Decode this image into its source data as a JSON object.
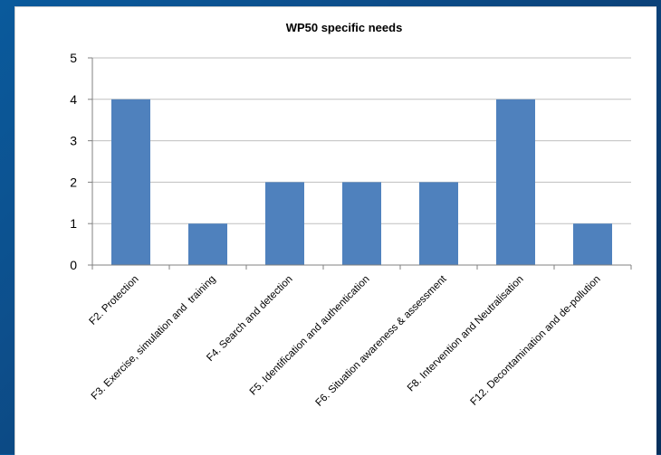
{
  "chart_data": {
    "type": "bar",
    "title": "WP50 specific needs",
    "xlabel": "",
    "ylabel": "",
    "ylim": [
      0,
      5
    ],
    "yticks": [
      0,
      1,
      2,
      3,
      4,
      5
    ],
    "grid": true,
    "legend": "none",
    "bar_color": "#4f81bd",
    "categories": [
      "F2. Protection",
      "F3. Exercise, simulation and  training",
      "F4. Search and detection",
      "F5. Identification and authentication",
      "F6. Situation awareness & assessment",
      "F8. Intervention and Neutralisation",
      "F12. Decontamination and de-pollution"
    ],
    "values": [
      4,
      1,
      2,
      2,
      2,
      4,
      1
    ]
  }
}
